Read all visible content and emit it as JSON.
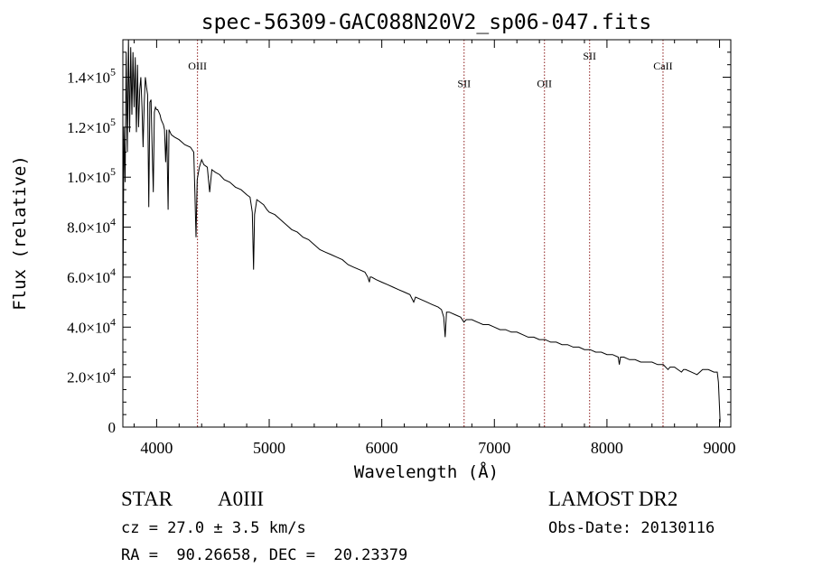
{
  "chart_data": {
    "type": "line",
    "title": "spec-56309-GAC088N20V2_sp06-047.fits",
    "xlabel": "Wavelength (Å)",
    "ylabel": "Flux (relative)",
    "xlim": [
      3700,
      9100
    ],
    "ylim": [
      0,
      155000
    ],
    "x_ticks": [
      {
        "value": 4000,
        "label": "4000"
      },
      {
        "value": 5000,
        "label": "5000"
      },
      {
        "value": 6000,
        "label": "6000"
      },
      {
        "value": 7000,
        "label": "7000"
      },
      {
        "value": 8000,
        "label": "8000"
      },
      {
        "value": 9000,
        "label": "9000"
      }
    ],
    "y_ticks": [
      {
        "value": 0,
        "mant": "0",
        "exp": ""
      },
      {
        "value": 20000,
        "mant": "2.0×10",
        "exp": "4"
      },
      {
        "value": 40000,
        "mant": "4.0×10",
        "exp": "4"
      },
      {
        "value": 60000,
        "mant": "6.0×10",
        "exp": "4"
      },
      {
        "value": 80000,
        "mant": "8.0×10",
        "exp": "4"
      },
      {
        "value": 100000,
        "mant": "1.0×10",
        "exp": "5"
      },
      {
        "value": 120000,
        "mant": "1.2×10",
        "exp": "5"
      },
      {
        "value": 140000,
        "mant": "1.4×10",
        "exp": "5"
      }
    ],
    "lines": [
      {
        "label": "OIII",
        "x": 4363,
        "label_y": 143000
      },
      {
        "label": "SII",
        "x": 6731,
        "label_y": 136000
      },
      {
        "label": "OII",
        "x": 7445,
        "label_y": 136000
      },
      {
        "label": "SII",
        "x": 7846,
        "label_y": 147000
      },
      {
        "label": "CaII",
        "x": 8498,
        "label_y": 143000
      }
    ],
    "series": [
      {
        "x": [
          3700,
          3710,
          3720,
          3730,
          3740,
          3750,
          3760,
          3770,
          3780,
          3790,
          3800,
          3810,
          3820,
          3830,
          3840,
          3850,
          3860,
          3870,
          3880,
          3890,
          3900,
          3910,
          3920,
          3930,
          3940,
          3950,
          3960,
          3970,
          3980,
          3990,
          4000,
          4010,
          4020,
          4030,
          4040,
          4050,
          4060,
          4070,
          4080,
          4090,
          4102,
          4110,
          4130,
          4160,
          4200,
          4250,
          4300,
          4330,
          4340,
          4350,
          4360,
          4380,
          4400,
          4420,
          4450,
          4471,
          4490,
          4520,
          4560,
          4600,
          4650,
          4700,
          4750,
          4800,
          4830,
          4850,
          4861,
          4870,
          4890,
          4920,
          4950,
          4980,
          5000,
          5050,
          5100,
          5150,
          5200,
          5250,
          5300,
          5350,
          5400,
          5450,
          5500,
          5550,
          5600,
          5650,
          5700,
          5750,
          5800,
          5850,
          5875,
          5890,
          5896,
          5910,
          5950,
          6000,
          6050,
          6100,
          6150,
          6200,
          6250,
          6284,
          6300,
          6350,
          6400,
          6450,
          6500,
          6530,
          6550,
          6563,
          6575,
          6600,
          6650,
          6700,
          6730,
          6750,
          6800,
          6850,
          6900,
          6950,
          7000,
          7050,
          7100,
          7150,
          7200,
          7250,
          7300,
          7350,
          7400,
          7450,
          7500,
          7550,
          7600,
          7650,
          7700,
          7750,
          7800,
          7850,
          7900,
          7950,
          8000,
          8050,
          8100,
          8110,
          8120,
          8150,
          8200,
          8250,
          8300,
          8350,
          8400,
          8450,
          8500,
          8542,
          8560,
          8600,
          8662,
          8680,
          8700,
          8750,
          8800,
          8850,
          8900,
          8950,
          8980,
          8990,
          9000,
          9005
        ],
        "y": [
          45000,
          120000,
          98000,
          150000,
          110000,
          155000,
          118000,
          152000,
          125000,
          150000,
          128000,
          148000,
          118000,
          145000,
          120000,
          135000,
          140000,
          128000,
          112000,
          130000,
          140000,
          136000,
          133000,
          88000,
          130000,
          131000,
          112000,
          94000,
          126000,
          128000,
          127000,
          127000,
          126000,
          125000,
          123000,
          122000,
          121000,
          119000,
          106000,
          119000,
          87000,
          119000,
          117000,
          116000,
          115000,
          113000,
          112000,
          110000,
          93000,
          76000,
          99000,
          104000,
          107000,
          105000,
          104000,
          94000,
          103000,
          102000,
          101000,
          99000,
          98000,
          96000,
          95000,
          93000,
          92000,
          86000,
          63000,
          85000,
          91000,
          90000,
          89000,
          87000,
          86000,
          85000,
          83000,
          81000,
          79000,
          78000,
          76000,
          75000,
          73000,
          71000,
          70000,
          69000,
          68000,
          67000,
          65000,
          64000,
          63000,
          62000,
          60000,
          58000,
          60000,
          60000,
          59000,
          58000,
          57000,
          56000,
          55000,
          54000,
          53000,
          50000,
          52000,
          51000,
          50000,
          49000,
          48000,
          47000,
          44000,
          36000,
          46000,
          46000,
          45000,
          44000,
          42000,
          43000,
          43000,
          42000,
          41000,
          41000,
          40000,
          39000,
          39000,
          38000,
          38000,
          37000,
          36000,
          36000,
          35000,
          35000,
          34000,
          34000,
          33000,
          33000,
          32000,
          32000,
          31000,
          31000,
          30000,
          30000,
          29000,
          29000,
          28000,
          25000,
          28000,
          28000,
          27000,
          27000,
          26000,
          26000,
          26000,
          25000,
          25000,
          23000,
          24000,
          24000,
          22000,
          23000,
          23000,
          22000,
          21000,
          23000,
          23000,
          22000,
          22000,
          18000,
          8000,
          2000
        ]
      }
    ]
  },
  "footer": {
    "object_class": "STAR",
    "spectral_type": "A0III",
    "survey": "LAMOST DR2",
    "cz": "cz = 27.0 ± 3.5 km/s",
    "obs_date": "Obs-Date: 20130116",
    "coords": "RA =  90.26658, DEC =  20.23379"
  }
}
